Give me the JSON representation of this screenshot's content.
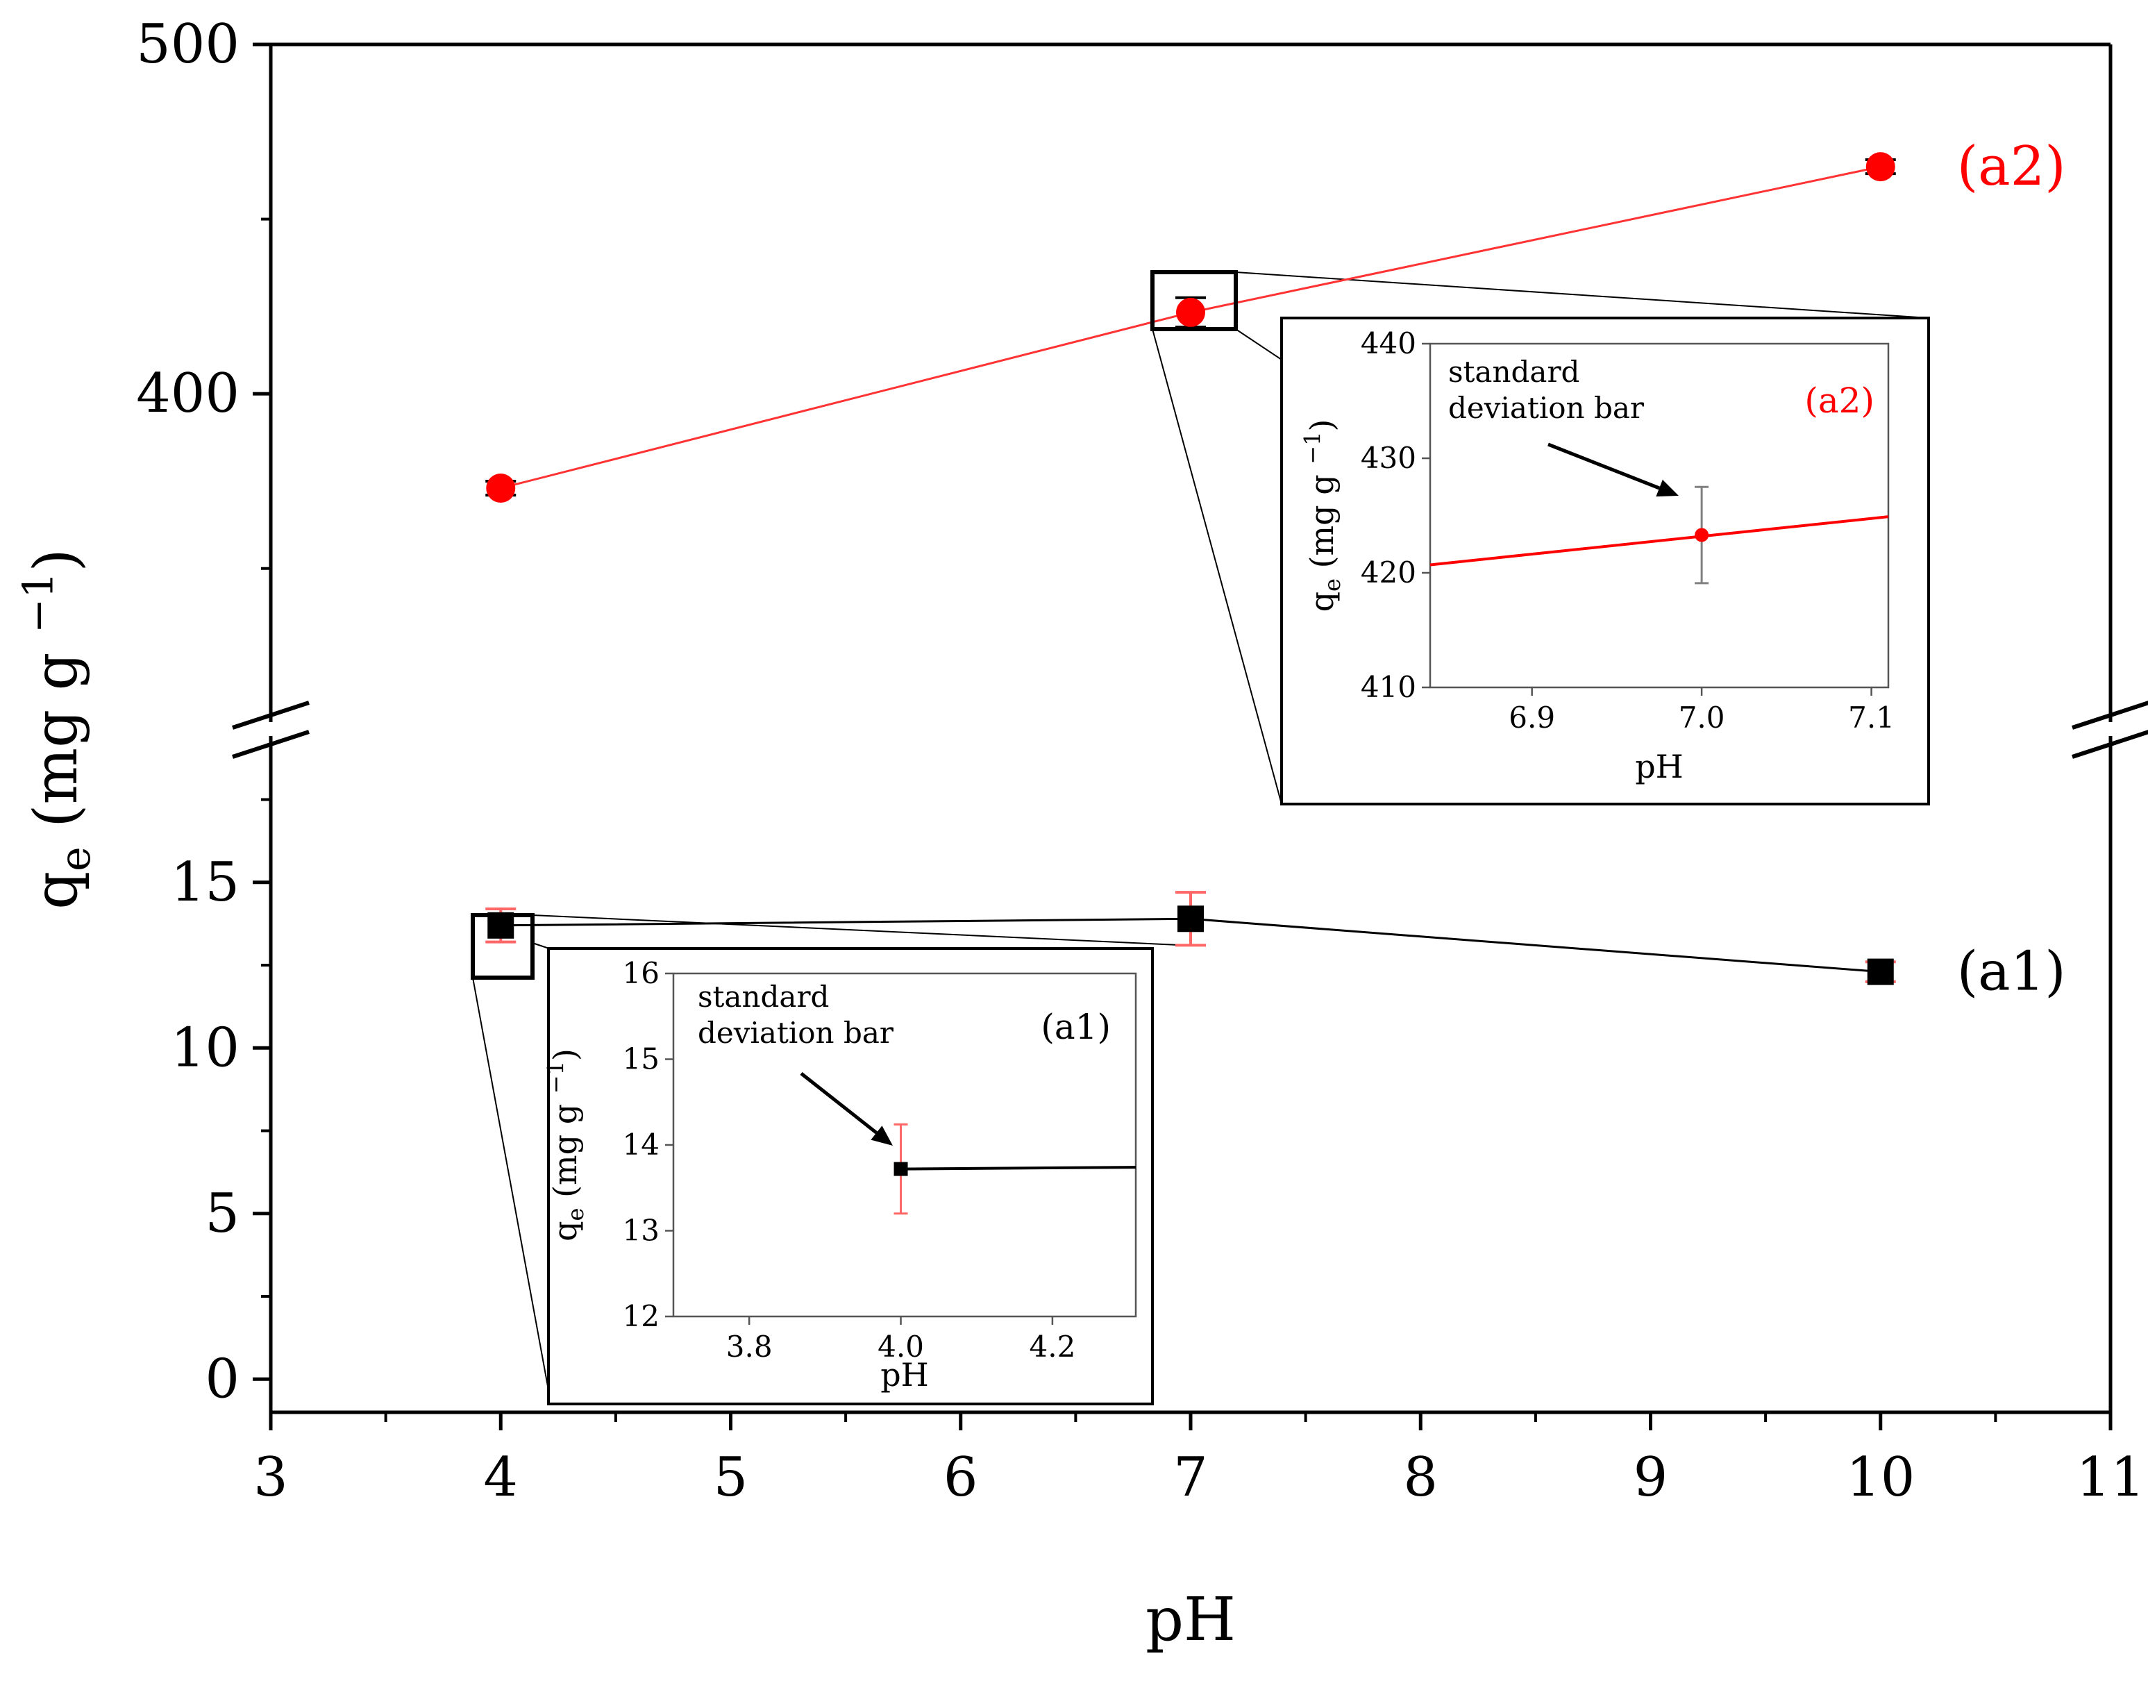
{
  "colors": {
    "a1": "#000000",
    "a2": "#ff0000",
    "error_bar": "#ff6666",
    "error_bar_inset": "#808080",
    "inset_error_a1": "#ff6666",
    "frame": "#000000"
  },
  "chart_data": {
    "type": "scatter",
    "title": "",
    "xlabel": "pH",
    "ylabel": "q",
    "ylabel_sub": "e",
    "ylabel_units": "(mg g",
    "ylabel_sup": "−1",
    "ylabel_close": ")",
    "xlim": [
      3,
      11
    ],
    "y_axis_break": {
      "lower_range": [
        -1,
        19
      ],
      "upper_range": [
        310,
        500
      ]
    },
    "x_ticks": [
      3,
      4,
      5,
      6,
      7,
      8,
      9,
      10,
      11
    ],
    "x_tick_labels": [
      "3",
      "4",
      "5",
      "6",
      "7",
      "8",
      "9",
      "10",
      "11"
    ],
    "y_ticks_lower": [
      0,
      5,
      10,
      15
    ],
    "y_tick_labels_lower": [
      "0",
      "5",
      "10",
      "15"
    ],
    "y_ticks_upper": [
      400,
      500
    ],
    "y_tick_labels_upper": [
      "400",
      "500"
    ],
    "series": [
      {
        "name": "(a1)",
        "marker": "square",
        "x": [
          4,
          7,
          10
        ],
        "y": [
          13.7,
          13.9,
          12.3
        ],
        "err": [
          0.5,
          0.8,
          0.3
        ]
      },
      {
        "name": "(a2)",
        "marker": "circle",
        "x": [
          4,
          7,
          10
        ],
        "y": [
          373,
          423.3,
          465
        ],
        "err": [
          2,
          4.2,
          2
        ]
      }
    ],
    "insets": [
      {
        "id": "a2",
        "label": "(a2)",
        "annotation_line1": "standard",
        "annotation_line2": "deviation bar",
        "xlabel": "pH",
        "ylabel": "q",
        "ylabel_sub": "e",
        "ylabel_units": "(mg g",
        "ylabel_sup": "−1",
        "ylabel_close": ")",
        "xlim": [
          6.84,
          7.11
        ],
        "ylim": [
          410,
          440
        ],
        "x_ticks": [
          6.9,
          7.0,
          7.1
        ],
        "x_tick_labels": [
          "6.9",
          "7.0",
          "7.1"
        ],
        "y_ticks": [
          410,
          420,
          430,
          440
        ],
        "y_tick_labels": [
          "410",
          "420",
          "430",
          "440"
        ],
        "line_x": [
          6.84,
          7.11
        ],
        "line_y": [
          420.7,
          424.9
        ],
        "point": {
          "x": 7.0,
          "y": 423.3,
          "err": 4.2
        }
      },
      {
        "id": "a1",
        "label": "(a1)",
        "annotation_line1": "standard",
        "annotation_line2": "deviation bar",
        "xlabel": "pH",
        "ylabel": "q",
        "ylabel_sub": "e",
        "ylabel_units": "(mg g",
        "ylabel_sup": "−1",
        "ylabel_close": ")",
        "xlim": [
          3.7,
          4.31
        ],
        "ylim": [
          12,
          16
        ],
        "x_ticks": [
          3.8,
          4.0,
          4.2
        ],
        "x_tick_labels": [
          "3.8",
          "4.0",
          "4.2"
        ],
        "y_ticks": [
          12,
          13,
          14,
          15,
          16
        ],
        "y_tick_labels": [
          "12",
          "13",
          "14",
          "15",
          "16"
        ],
        "line_x": [
          4.0,
          4.31
        ],
        "line_y": [
          13.72,
          13.74
        ],
        "point": {
          "x": 4.0,
          "y": 13.72,
          "err": 0.52
        }
      }
    ]
  }
}
